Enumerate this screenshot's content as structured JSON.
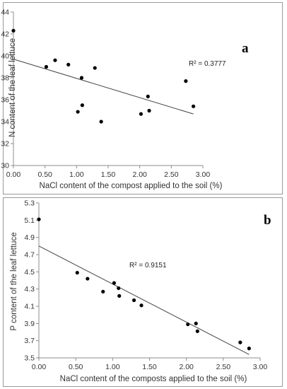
{
  "chart_data": [
    {
      "id": "a",
      "type": "scatter",
      "panel_label": "a",
      "xlabel": "NaCl content of the compost applied to the soil (%)",
      "ylabel": "N content of the leaf lettuce",
      "xlim": [
        0,
        3
      ],
      "ylim": [
        30,
        44
      ],
      "x_ticks": [
        0,
        0.5,
        1,
        1.5,
        2,
        2.5,
        3
      ],
      "x_tick_labels": [
        "0.00",
        "0.50",
        "1.00",
        "1.50",
        "2.00",
        "2.50",
        "3.00"
      ],
      "y_ticks": [
        30,
        32,
        34,
        36,
        38,
        40,
        42,
        44
      ],
      "y_tick_labels": [
        "30",
        "32",
        "34",
        "36",
        "38",
        "40",
        "42",
        "44"
      ],
      "points": [
        {
          "x": 0.0,
          "y": 42.3
        },
        {
          "x": 0.52,
          "y": 39.0
        },
        {
          "x": 0.66,
          "y": 39.6
        },
        {
          "x": 0.87,
          "y": 39.2
        },
        {
          "x": 1.02,
          "y": 34.9
        },
        {
          "x": 1.08,
          "y": 38.0
        },
        {
          "x": 1.09,
          "y": 35.5
        },
        {
          "x": 1.29,
          "y": 38.9
        },
        {
          "x": 1.39,
          "y": 34.0
        },
        {
          "x": 2.02,
          "y": 34.7
        },
        {
          "x": 2.13,
          "y": 36.3
        },
        {
          "x": 2.15,
          "y": 35.0
        },
        {
          "x": 2.73,
          "y": 37.7
        },
        {
          "x": 2.85,
          "y": 35.4
        }
      ],
      "trendline": {
        "x": [
          0,
          2.85
        ],
        "y": [
          39.7,
          34.7
        ]
      },
      "r2_label": "R² = 0.3777"
    },
    {
      "id": "b",
      "type": "scatter",
      "panel_label": "b",
      "xlabel": "NaCl content of the composts applied to the soil (%)",
      "ylabel": "P content of the leaf lettuce",
      "xlim": [
        0,
        3
      ],
      "ylim": [
        3.5,
        5.3
      ],
      "x_ticks": [
        0,
        0.5,
        1,
        1.5,
        2,
        2.5,
        3
      ],
      "x_tick_labels": [
        "0.00",
        "0.50",
        "1.00",
        "1.50",
        "2.00",
        "2.50",
        "3.00"
      ],
      "y_ticks": [
        3.5,
        3.7,
        3.9,
        4.1,
        4.3,
        4.5,
        4.7,
        4.9,
        5.1,
        5.3
      ],
      "y_tick_labels": [
        "3.5",
        "3.7",
        "3.9",
        "4.1",
        "4.3",
        "4.5",
        "4.7",
        "4.9",
        "5.1",
        "5.3"
      ],
      "points": [
        {
          "x": 0.0,
          "y": 5.11
        },
        {
          "x": 0.52,
          "y": 4.49
        },
        {
          "x": 0.66,
          "y": 4.42
        },
        {
          "x": 0.87,
          "y": 4.27
        },
        {
          "x": 1.02,
          "y": 4.37
        },
        {
          "x": 1.08,
          "y": 4.31
        },
        {
          "x": 1.09,
          "y": 4.22
        },
        {
          "x": 1.29,
          "y": 4.17
        },
        {
          "x": 1.39,
          "y": 4.11
        },
        {
          "x": 2.02,
          "y": 3.89
        },
        {
          "x": 2.13,
          "y": 3.9
        },
        {
          "x": 2.15,
          "y": 3.81
        },
        {
          "x": 2.73,
          "y": 3.68
        },
        {
          "x": 2.85,
          "y": 3.61
        }
      ],
      "trendline": {
        "x": [
          0,
          2.85
        ],
        "y": [
          4.8,
          3.54
        ]
      },
      "r2_label": "R² = 0.9151"
    }
  ]
}
